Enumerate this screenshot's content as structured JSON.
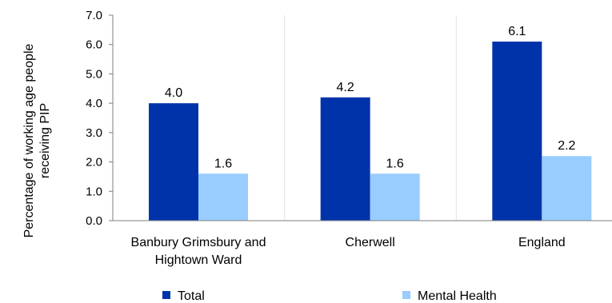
{
  "chart_data": {
    "type": "bar",
    "title": "",
    "xlabel": "",
    "ylabel": "Percentage of working age people receiving PIP",
    "ylabel_lines": [
      "Percentage of working age people",
      "receiving PIP"
    ],
    "categories": [
      "Banbury Grimsbury and Hightown Ward",
      "Cherwell",
      "England"
    ],
    "category_lines": [
      [
        "Banbury Grimsbury and",
        "Hightown Ward"
      ],
      [
        "Cherwell"
      ],
      [
        "England"
      ]
    ],
    "series": [
      {
        "name": "Total",
        "color": "#0033AA",
        "values": [
          4.0,
          4.2,
          6.1
        ],
        "labels": [
          "4.0",
          "4.2",
          "6.1"
        ]
      },
      {
        "name": "Mental Health",
        "color": "#99CCFF",
        "values": [
          1.6,
          1.6,
          2.2
        ],
        "labels": [
          "1.6",
          "1.6",
          "2.2"
        ]
      }
    ],
    "ylim": [
      0,
      7
    ],
    "yticks": [
      "0.0",
      "1.0",
      "2.0",
      "3.0",
      "4.0",
      "5.0",
      "6.0",
      "7.0"
    ],
    "grid": "vertical-category-separators",
    "legend": "bottom"
  }
}
